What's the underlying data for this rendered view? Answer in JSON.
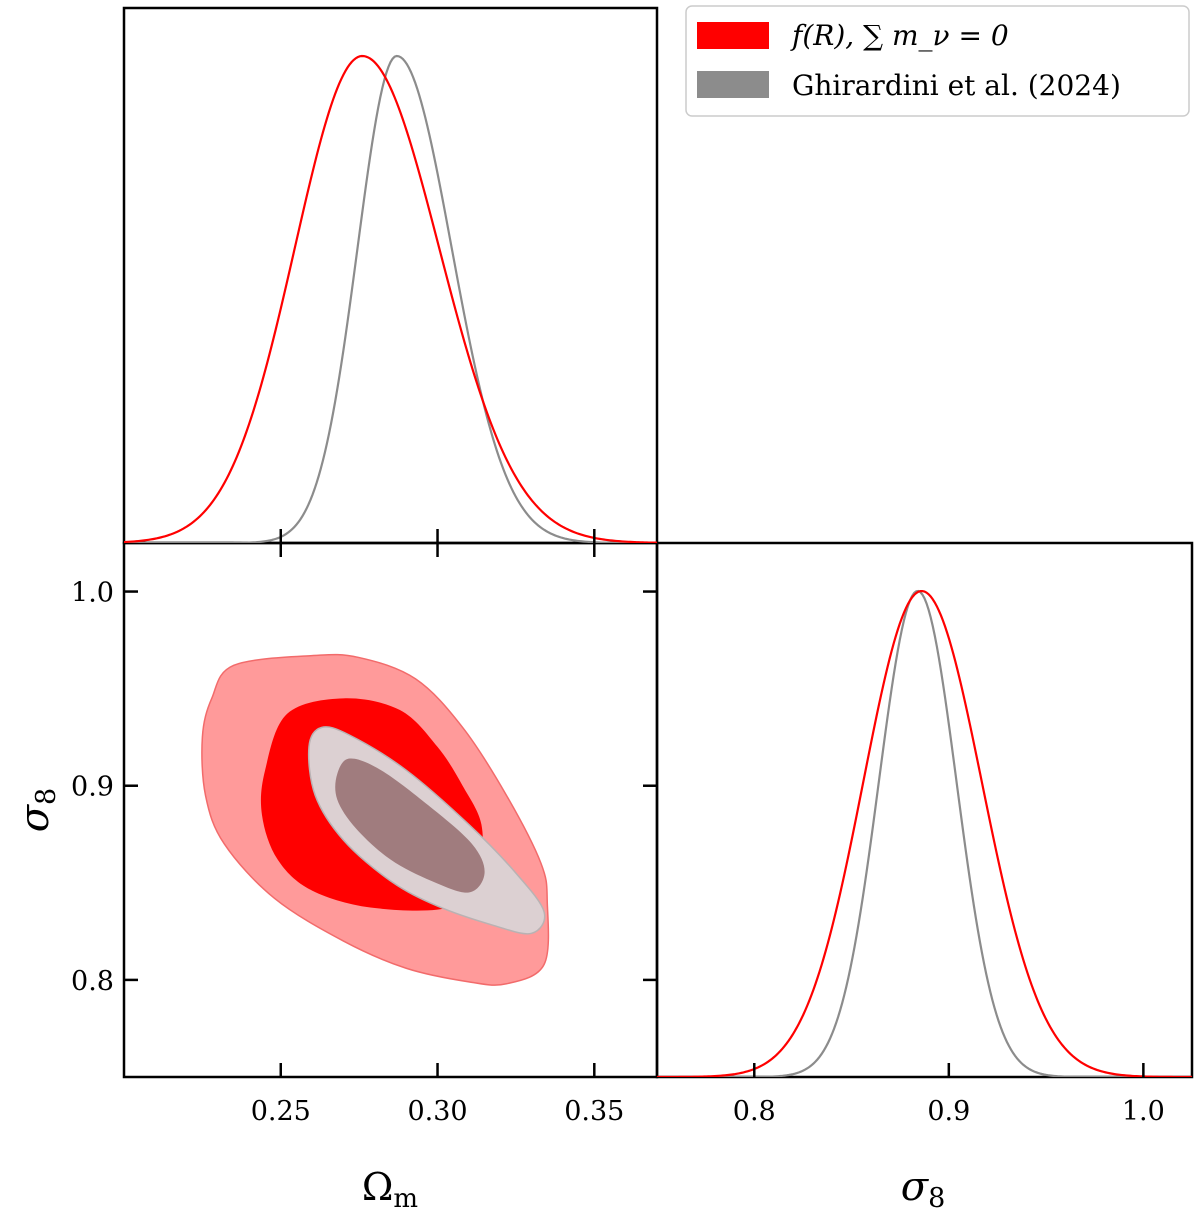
{
  "legend": {
    "entries": [
      {
        "label": "f(R), ∑ m_ν = 0",
        "color": "#ff0000"
      },
      {
        "label": "Ghirardini et al. (2024)",
        "color": "#8c8c8c"
      }
    ]
  },
  "axes": {
    "omega_label": "Ω",
    "omega_label_sub": "m",
    "sigma_label": "σ",
    "sigma_label_sub": "8"
  },
  "colors": {
    "red_line": "#ff0000",
    "red_outer_fill": "#ff9a9a",
    "red_inner_fill": "#ff0000",
    "gray_line": "#8c8c8c",
    "gray_outer_fill": "#dcd0d2",
    "gray_inner_fill": "#a07c7e"
  },
  "chart_data": [
    {
      "type": "line",
      "panel": "top-left: marginal posterior of Ω_m",
      "xlabel": "Ω_m",
      "xlim": [
        0.2,
        0.37
      ],
      "xticks": [
        0.25,
        0.3,
        0.35
      ],
      "xticklabels": [
        "0.25",
        "0.30",
        "0.35"
      ],
      "series": [
        {
          "name": "f(R), ∑ m_ν = 0",
          "peak": 0.276,
          "width_left": 0.0215,
          "width_right": 0.0245
        },
        {
          "name": "Ghirardini et al. (2024)",
          "peak": 0.287,
          "width_left": 0.0125,
          "width_right": 0.0175
        }
      ]
    },
    {
      "type": "line",
      "panel": "bottom-right: marginal posterior of σ_8",
      "xlabel": "σ_8",
      "xlim": [
        0.75,
        1.025
      ],
      "xticks": [
        0.8,
        0.9,
        1.0
      ],
      "xticklabels": [
        "0.8",
        "0.9",
        "1.0"
      ],
      "series": [
        {
          "name": "f(R), ∑ m_ν = 0",
          "peak": 0.886,
          "width_left": 0.03,
          "width_right": 0.031
        },
        {
          "name": "Ghirardini et al. (2024)",
          "peak": 0.884,
          "width_left": 0.02,
          "width_right": 0.02
        }
      ]
    },
    {
      "type": "area",
      "panel": "bottom-left: joint Ω_m – σ_8 contours (68% and 95%)",
      "xlabel": "Ω_m",
      "ylabel": "σ_8",
      "xlim": [
        0.2,
        0.37
      ],
      "ylim": [
        0.75,
        1.025
      ],
      "xticks": [
        0.25,
        0.3,
        0.35
      ],
      "xticklabels": [
        "0.25",
        "0.30",
        "0.35"
      ],
      "yticks": [
        0.8,
        0.9,
        1.0
      ],
      "yticklabels": [
        "0.8",
        "0.9",
        "1.0"
      ],
      "contours": [
        {
          "series": "f(R), ∑ m_ν = 0",
          "level": "95%",
          "points": [
            [
              0.228,
              0.945
            ],
            [
              0.235,
              0.962
            ],
            [
              0.26,
              0.967
            ],
            [
              0.275,
              0.966
            ],
            [
              0.293,
              0.955
            ],
            [
              0.308,
              0.93
            ],
            [
              0.322,
              0.895
            ],
            [
              0.333,
              0.86
            ],
            [
              0.335,
              0.84
            ],
            [
              0.334,
              0.808
            ],
            [
              0.322,
              0.798
            ],
            [
              0.31,
              0.799
            ],
            [
              0.29,
              0.806
            ],
            [
              0.27,
              0.82
            ],
            [
              0.248,
              0.842
            ],
            [
              0.232,
              0.87
            ],
            [
              0.226,
              0.895
            ],
            [
              0.225,
              0.925
            ]
          ]
        },
        {
          "series": "f(R), ∑ m_ν = 0",
          "level": "68%",
          "points": [
            [
              0.245,
              0.908
            ],
            [
              0.252,
              0.937
            ],
            [
              0.27,
              0.945
            ],
            [
              0.288,
              0.939
            ],
            [
              0.3,
              0.92
            ],
            [
              0.308,
              0.9
            ],
            [
              0.314,
              0.88
            ],
            [
              0.313,
              0.858
            ],
            [
              0.305,
              0.838
            ],
            [
              0.28,
              0.837
            ],
            [
              0.26,
              0.846
            ],
            [
              0.249,
              0.862
            ],
            [
              0.244,
              0.885
            ]
          ]
        },
        {
          "series": "Ghirardini et al. (2024)",
          "level": "95%",
          "points": [
            [
              0.259,
              0.92
            ],
            [
              0.263,
              0.93
            ],
            [
              0.272,
              0.926
            ],
            [
              0.29,
              0.908
            ],
            [
              0.31,
              0.88
            ],
            [
              0.325,
              0.855
            ],
            [
              0.334,
              0.835
            ],
            [
              0.33,
              0.824
            ],
            [
              0.318,
              0.828
            ],
            [
              0.3,
              0.838
            ],
            [
              0.285,
              0.851
            ],
            [
              0.27,
              0.872
            ],
            [
              0.261,
              0.895
            ]
          ]
        },
        {
          "series": "Ghirardini et al. (2024)",
          "level": "68%",
          "points": [
            [
              0.268,
              0.906
            ],
            [
              0.272,
              0.914
            ],
            [
              0.282,
              0.908
            ],
            [
              0.297,
              0.89
            ],
            [
              0.311,
              0.87
            ],
            [
              0.315,
              0.855
            ],
            [
              0.31,
              0.845
            ],
            [
              0.298,
              0.851
            ],
            [
              0.285,
              0.862
            ],
            [
              0.274,
              0.878
            ],
            [
              0.268,
              0.893
            ]
          ]
        }
      ]
    }
  ]
}
